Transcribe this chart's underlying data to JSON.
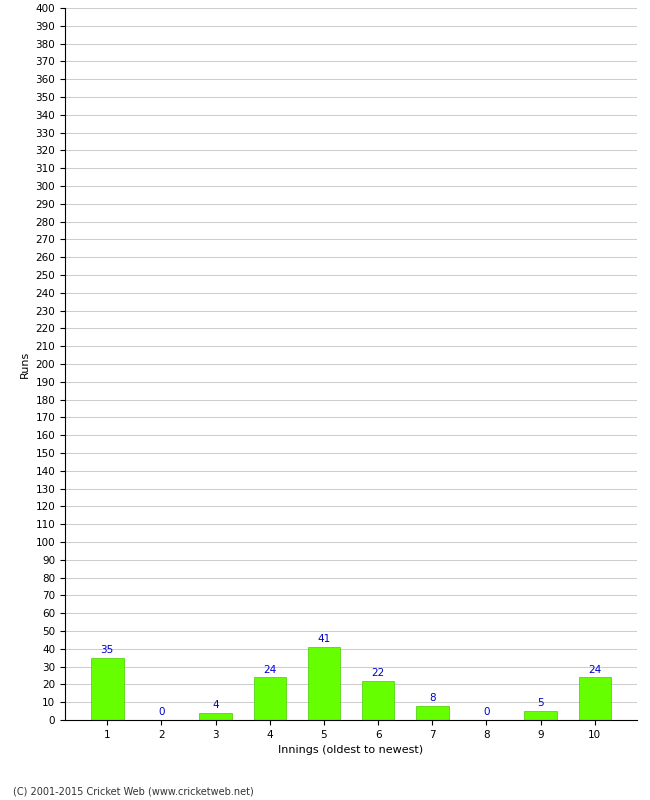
{
  "categories": [
    "1",
    "2",
    "3",
    "4",
    "5",
    "6",
    "7",
    "8",
    "9",
    "10"
  ],
  "values": [
    35,
    0,
    4,
    24,
    41,
    22,
    8,
    0,
    5,
    24
  ],
  "bar_color": "#66ff00",
  "bar_edge_color": "#44cc00",
  "ylabel": "Runs",
  "xlabel": "Innings (oldest to newest)",
  "ylim": [
    0,
    400
  ],
  "ytick_step": 10,
  "annotation_color": "#0000cc",
  "annotation_fontsize": 7.5,
  "footer": "(C) 2001-2015 Cricket Web (www.cricketweb.net)",
  "grid_color": "#cccccc",
  "background_color": "#ffffff",
  "label_fontsize": 8,
  "tick_fontsize": 7.5
}
